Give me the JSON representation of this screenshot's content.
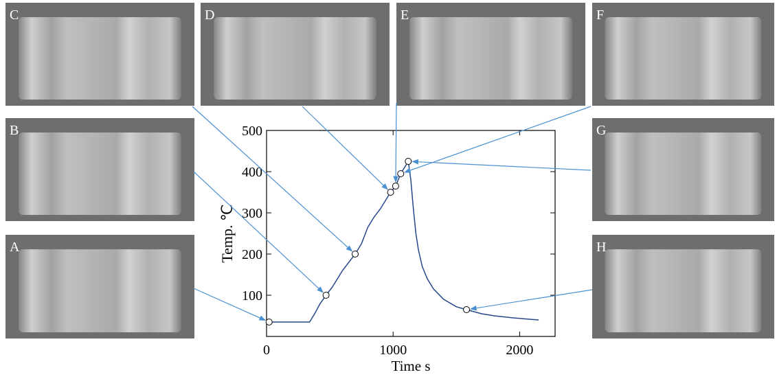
{
  "chart_data": {
    "type": "line",
    "x_label": "Time s",
    "y_label": "Temp. ℃",
    "xlim": [
      0,
      2280
    ],
    "ylim": [
      0,
      500
    ],
    "xticks": [
      0,
      1000,
      2000
    ],
    "yticks": [
      100,
      200,
      300,
      400,
      500
    ],
    "series": [
      {
        "color": "#27458a",
        "x": [
          0,
          100,
          200,
          300,
          340,
          380,
          420,
          470,
          520,
          560,
          600,
          650,
          700,
          750,
          800,
          850,
          900,
          950,
          980,
          1020,
          1060,
          1100,
          1120,
          1140,
          1160,
          1180,
          1200,
          1230,
          1270,
          1320,
          1400,
          1500,
          1580,
          1700,
          1800,
          1950,
          2150
        ],
        "values": [
          35,
          35,
          35,
          35,
          35,
          55,
          78,
          100,
          120,
          140,
          160,
          180,
          200,
          225,
          265,
          290,
          310,
          335,
          350,
          365,
          395,
          415,
          425,
          380,
          310,
          250,
          210,
          170,
          140,
          115,
          90,
          72,
          65,
          55,
          50,
          45,
          40
        ]
      }
    ],
    "markers": {
      "labels": [
        "A",
        "B",
        "C",
        "D",
        "E",
        "F",
        "G",
        "H"
      ],
      "x": [
        20,
        470,
        700,
        980,
        1020,
        1060,
        1120,
        1580
      ],
      "values": [
        35,
        100,
        200,
        350,
        365,
        395,
        425,
        65
      ]
    }
  }
}
